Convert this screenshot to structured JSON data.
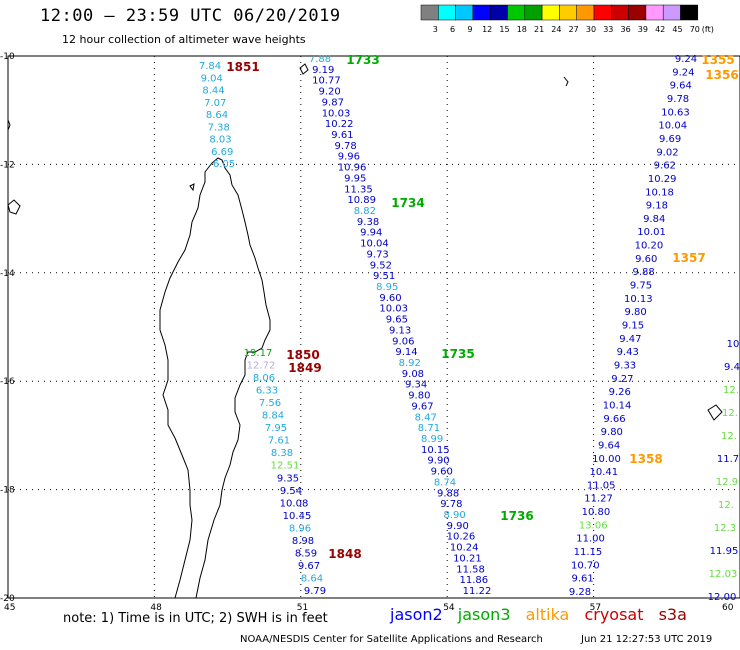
{
  "header": {
    "title": "12:00 – 23:59 UTC 06/20/2019",
    "subtitle": "12 hour collection of altimeter wave heights"
  },
  "colorbar": {
    "ticks": [
      "3",
      "6",
      "9",
      "12",
      "15",
      "18",
      "21",
      "24",
      "27",
      "30",
      "33",
      "36",
      "39",
      "42",
      "45",
      "70"
    ],
    "unit": "(ft)",
    "colors": [
      "#808080",
      "#00ffff",
      "#00c8ff",
      "#0000ff",
      "#0000aa",
      "#00c800",
      "#00a000",
      "#ffff00",
      "#ffcc00",
      "#ff9900",
      "#ff0000",
      "#cc0000",
      "#990000",
      "#ff99ff",
      "#cc99ff",
      "#000000"
    ]
  },
  "axes": {
    "lat_labels": [
      "-10",
      "-12",
      "-14",
      "-16",
      "-18",
      "-20"
    ],
    "lon_labels": [
      "45",
      "48",
      "51",
      "54",
      "57",
      "60"
    ]
  },
  "legend": {
    "note": "note:  1) Time is in UTC;  2) SWH is in feet",
    "satellites": [
      {
        "name": "jason2",
        "color": "#0000ff"
      },
      {
        "name": "jason3",
        "color": "#00aa00"
      },
      {
        "name": "altika",
        "color": "#ff9900"
      },
      {
        "name": "cryosat",
        "color": "#cc0000"
      },
      {
        "name": "s3a",
        "color": "#990000"
      }
    ]
  },
  "footer": {
    "credit": "NOAA/NESDIS Center for Satellite Applications and Research",
    "timestamp": "Jun 21 12:27:53 UTC 2019"
  },
  "time_labels": [
    {
      "text": "1851",
      "color": "#990000"
    },
    {
      "text": "1850",
      "color": "#990000"
    },
    {
      "text": "1849",
      "color": "#990000"
    },
    {
      "text": "1848",
      "color": "#990000"
    },
    {
      "text": "1733",
      "color": "#00aa00"
    },
    {
      "text": "1734",
      "color": "#00aa00"
    },
    {
      "text": "1735",
      "color": "#00aa00"
    },
    {
      "text": "1736",
      "color": "#00aa00"
    },
    {
      "text": "1355",
      "color": "#ff9900"
    },
    {
      "text": "1356",
      "color": "#ff9900"
    },
    {
      "text": "1357",
      "color": "#ff9900"
    },
    {
      "text": "1358",
      "color": "#ff9900"
    }
  ],
  "tracks": {
    "track_a": {
      "values": [
        "7.84",
        "9.04",
        "8.44",
        "7.07",
        "8.64",
        "7.38",
        "8.03",
        "6.69",
        "6.05"
      ],
      "colors": [
        "c",
        "c",
        "c",
        "c",
        "c",
        "c",
        "c",
        "c",
        "c"
      ]
    },
    "track_b": {
      "values": [
        "7.88",
        "9.19",
        "10.77",
        "9.20",
        "9.87",
        "10.03",
        "10.22",
        "9.61",
        "9.78",
        "9.96",
        "10.96",
        "9.95",
        "11.35",
        "10.89",
        "8.82",
        "9.38",
        "9.94",
        "10.04",
        "9.73",
        "9.52",
        "9.51",
        "8.95",
        "9.60",
        "10.03",
        "9.65",
        "9.13",
        "9.06",
        "9.14",
        "8.92",
        "9.08",
        "9.34",
        "9.80",
        "9.67",
        "8.47",
        "8.71",
        "8.99",
        "10.15",
        "9.90",
        "9.60",
        "8.74",
        "9.88",
        "9.78",
        "8.90",
        "9.90",
        "10.26",
        "10.24",
        "10.21",
        "11.58",
        "11.86",
        "11.22"
      ],
      "colors": [
        "c",
        "b",
        "b",
        "b",
        "b",
        "b",
        "b",
        "b",
        "b",
        "b",
        "b",
        "b",
        "b",
        "b",
        "c",
        "b",
        "b",
        "b",
        "b",
        "b",
        "b",
        "c",
        "b",
        "b",
        "b",
        "b",
        "b",
        "b",
        "c",
        "b",
        "b",
        "b",
        "b",
        "c",
        "c",
        "c",
        "b",
        "b",
        "b",
        "c",
        "b",
        "b",
        "c",
        "b",
        "b",
        "b",
        "b",
        "b",
        "b",
        "b"
      ]
    },
    "track_c": {
      "values": [
        "19.17",
        "12.72",
        "8.06",
        "6.33",
        "7.56",
        "8.84",
        "7.95",
        "7.61",
        "8.38",
        "12.51",
        "9.35",
        "9.54",
        "10.08",
        "10.45",
        "8.96",
        "8.98",
        "8.59",
        "9.67",
        "8.64",
        "9.79"
      ],
      "colors": [
        "g",
        "p",
        "c",
        "c",
        "c",
        "c",
        "c",
        "c",
        "c",
        "lg",
        "b",
        "b",
        "b",
        "b",
        "c",
        "b",
        "b",
        "b",
        "c",
        "b"
      ]
    },
    "track_d": {
      "values": [
        "9.24",
        "9.24",
        "9.64",
        "9.78",
        "10.63",
        "10.04",
        "9.69",
        "9.02",
        "9.62",
        "10.29",
        "10.18",
        "9.18",
        "9.84",
        "10.01",
        "10.20",
        "9.60",
        "9.88",
        "9.75",
        "10.13",
        "9.80",
        "9.15",
        "9.47",
        "9.43",
        "9.33",
        "9.27",
        "9.26",
        "10.14",
        "9.66",
        "9.80",
        "9.64",
        "10.00",
        "10.41",
        "11.05",
        "11.27",
        "10.80",
        "13.06",
        "11.00",
        "11.15",
        "10.70",
        "9.61",
        "9.28"
      ],
      "colors": [
        "b",
        "b",
        "b",
        "b",
        "b",
        "b",
        "b",
        "b",
        "b",
        "b",
        "b",
        "b",
        "b",
        "b",
        "b",
        "b",
        "b",
        "b",
        "b",
        "b",
        "b",
        "b",
        "b",
        "b",
        "b",
        "b",
        "b",
        "b",
        "b",
        "b",
        "b",
        "b",
        "b",
        "b",
        "b",
        "lg",
        "b",
        "b",
        "b",
        "b",
        "b"
      ]
    },
    "track_e": {
      "values": [
        "10",
        "9.4",
        "12.",
        "12.",
        "12.",
        "11.7",
        "12.9",
        "12.",
        "12.3",
        "11.95",
        "12.03",
        "12.00"
      ],
      "colors": [
        "b",
        "b",
        "lg",
        "lg",
        "lg",
        "b",
        "lg",
        "lg",
        "lg",
        "b",
        "lg",
        "b"
      ]
    }
  }
}
